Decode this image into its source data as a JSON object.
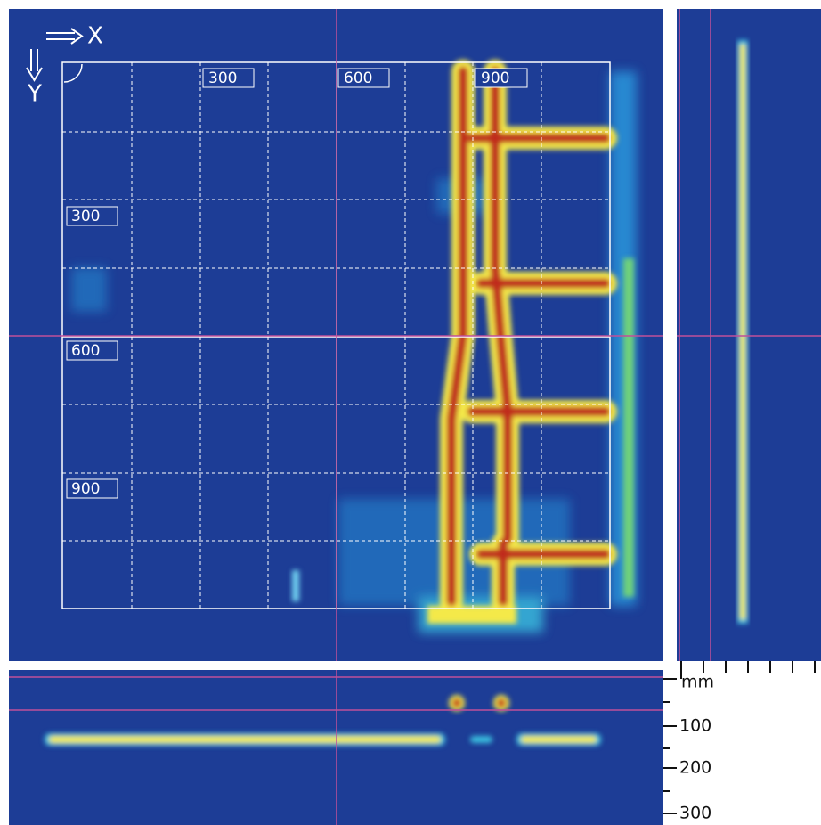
{
  "axes": {
    "x": "X",
    "y": "Y"
  },
  "top_labels": [
    300,
    600,
    900
  ],
  "left_labels": [
    300,
    600,
    900
  ],
  "depth_scale": {
    "unit": "mm",
    "ticks": [
      100,
      200,
      300
    ]
  }
}
